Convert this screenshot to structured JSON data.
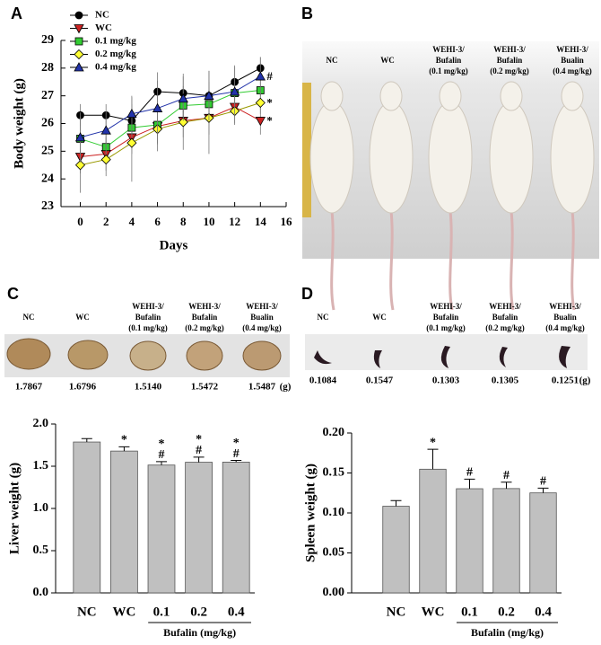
{
  "chart_data": [
    {
      "type": "line",
      "panel": "A",
      "xlabel": "Days",
      "ylabel": "Body weight (g)",
      "x": [
        0,
        2,
        4,
        6,
        8,
        10,
        12,
        14
      ],
      "xlim": [
        -1.5,
        16
      ],
      "xticks": [
        0,
        2,
        4,
        6,
        8,
        10,
        12,
        14,
        16
      ],
      "ylim": [
        23,
        29
      ],
      "yticks": [
        23,
        24,
        25,
        26,
        27,
        28,
        29
      ],
      "series": [
        {
          "name": "NC",
          "color": "#000000",
          "marker": "circle",
          "values": [
            26.3,
            26.3,
            26.1,
            27.15,
            27.1,
            27.0,
            27.5,
            28.0
          ],
          "errors": [
            0.4,
            0.4,
            0.9,
            0.7,
            0.7,
            0.9,
            0.6,
            0.4
          ]
        },
        {
          "name": "WC",
          "color": "#cc2222",
          "marker": "triangle-down",
          "values": [
            24.8,
            24.9,
            25.5,
            25.9,
            26.1,
            26.2,
            26.6,
            26.1
          ],
          "errors": [
            0.6,
            0.6,
            0.6,
            0.6,
            0.6,
            0.6,
            0.6,
            0.5
          ],
          "end_label": "*"
        },
        {
          "name": "0.1 mg/kg",
          "color": "#33cc33",
          "marker": "square",
          "values": [
            25.45,
            25.15,
            25.85,
            25.95,
            26.65,
            26.7,
            27.1,
            27.2
          ],
          "errors": [
            0.8,
            0.6,
            0.7,
            0.7,
            0.7,
            0.6,
            0.5,
            0.7
          ]
        },
        {
          "name": "0.2 mg/kg",
          "color": "#ffff33",
          "marker": "diamond",
          "values": [
            24.5,
            24.7,
            25.3,
            25.8,
            26.05,
            26.2,
            26.45,
            26.75
          ],
          "errors": [
            1.0,
            0.6,
            1.4,
            0.8,
            1.0,
            1.3,
            0.5,
            0.4
          ],
          "end_label": "*"
        },
        {
          "name": "0.4 mg/kg",
          "color": "#2233aa",
          "marker": "triangle-up",
          "values": [
            25.5,
            25.75,
            26.35,
            26.55,
            26.9,
            27.0,
            27.15,
            27.7
          ],
          "errors": [
            0.9,
            0.7,
            0.6,
            1.0,
            0.8,
            0.9,
            0.9,
            0.7
          ],
          "end_label": "#"
        }
      ]
    },
    {
      "type": "bar",
      "ylabel": "Liver weight (g)",
      "categories": [
        "NC",
        "WC",
        "0.1",
        "0.2",
        "0.4"
      ],
      "values": [
        1.7867,
        1.6796,
        1.514,
        1.5472,
        1.5487
      ],
      "errors": [
        0.04,
        0.05,
        0.04,
        0.06,
        0.02
      ],
      "annotations": [
        null,
        [
          "*"
        ],
        [
          "*",
          "#"
        ],
        [
          "*",
          "#"
        ],
        [
          "*",
          "#"
        ]
      ],
      "group_label": "Bufalin  (mg/kg)",
      "color": "#c0c0c0",
      "ylim": [
        0,
        2
      ],
      "yticks": [
        {
          "value": 0,
          "label": "0.0"
        },
        {
          "value": 0.5,
          "label": "0.5"
        },
        {
          "value": 1,
          "label": "1.0"
        },
        {
          "value": 1.5,
          "label": "1.5"
        },
        {
          "value": 2,
          "label": "2.0"
        }
      ]
    },
    {
      "type": "bar",
      "ylabel": "Spleen weight (g)",
      "categories": [
        "NC",
        "WC",
        "0.1",
        "0.2",
        "0.4"
      ],
      "values": [
        0.1084,
        0.1547,
        0.1303,
        0.1305,
        0.1251
      ],
      "errors": [
        0.007,
        0.025,
        0.012,
        0.008,
        0.006
      ],
      "annotations": [
        null,
        [
          "*"
        ],
        [
          "#"
        ],
        [
          "#"
        ],
        [
          "#"
        ]
      ],
      "group_label": "Bufalin  (mg/kg)",
      "color": "#c0c0c0",
      "ylim": [
        0,
        0.2
      ],
      "yticks": [
        {
          "value": 0,
          "label": "0.00"
        },
        {
          "value": 0.05,
          "label": "0.05"
        },
        {
          "value": 0.1,
          "label": "0.10"
        },
        {
          "value": 0.15,
          "label": "0.15"
        },
        {
          "value": 0.2,
          "label": "0.20"
        }
      ]
    }
  ],
  "photos": [
    {
      "panel": "B",
      "labels": [
        [
          "NC"
        ],
        [
          "WC"
        ],
        [
          "WEHI-3/",
          "Bufalin",
          "(0.1 mg/kg)"
        ],
        [
          "WEHI-3/",
          "Bufalin",
          "(0.2 mg/kg)"
        ],
        [
          "WEHI-3/",
          "Bualin",
          "(0.4 mg/kg)"
        ]
      ]
    },
    {
      "panel": "C",
      "labels": [
        [
          "NC"
        ],
        [
          "WC"
        ],
        [
          "WEHI-3/",
          "Bufalin",
          "(0.1 mg/kg)"
        ],
        [
          "WEHI-3/",
          "Bufalin",
          "(0.2 mg/kg)"
        ],
        [
          "WEHI-3/",
          "Bualin",
          "(0.4 mg/kg)"
        ]
      ],
      "weights": [
        "1.7867",
        "1.6796",
        "1.5140",
        "1.5472",
        "1.5487"
      ],
      "unit": "(g)"
    },
    {
      "panel": "D",
      "labels": [
        [
          "NC"
        ],
        [
          "WC"
        ],
        [
          "WEHI-3/",
          "Bufalin",
          "(0.1 mg/kg)"
        ],
        [
          "WEHI-3/",
          "Bufalin",
          "(0.2 mg/kg)"
        ],
        [
          "WEHI-3/",
          "Bualin",
          "(0.4 mg/kg)"
        ]
      ],
      "weights": [
        "0.1084",
        "0.1547",
        "0.1303",
        "0.1305",
        "0.1251"
      ],
      "unit": "(g)"
    }
  ]
}
